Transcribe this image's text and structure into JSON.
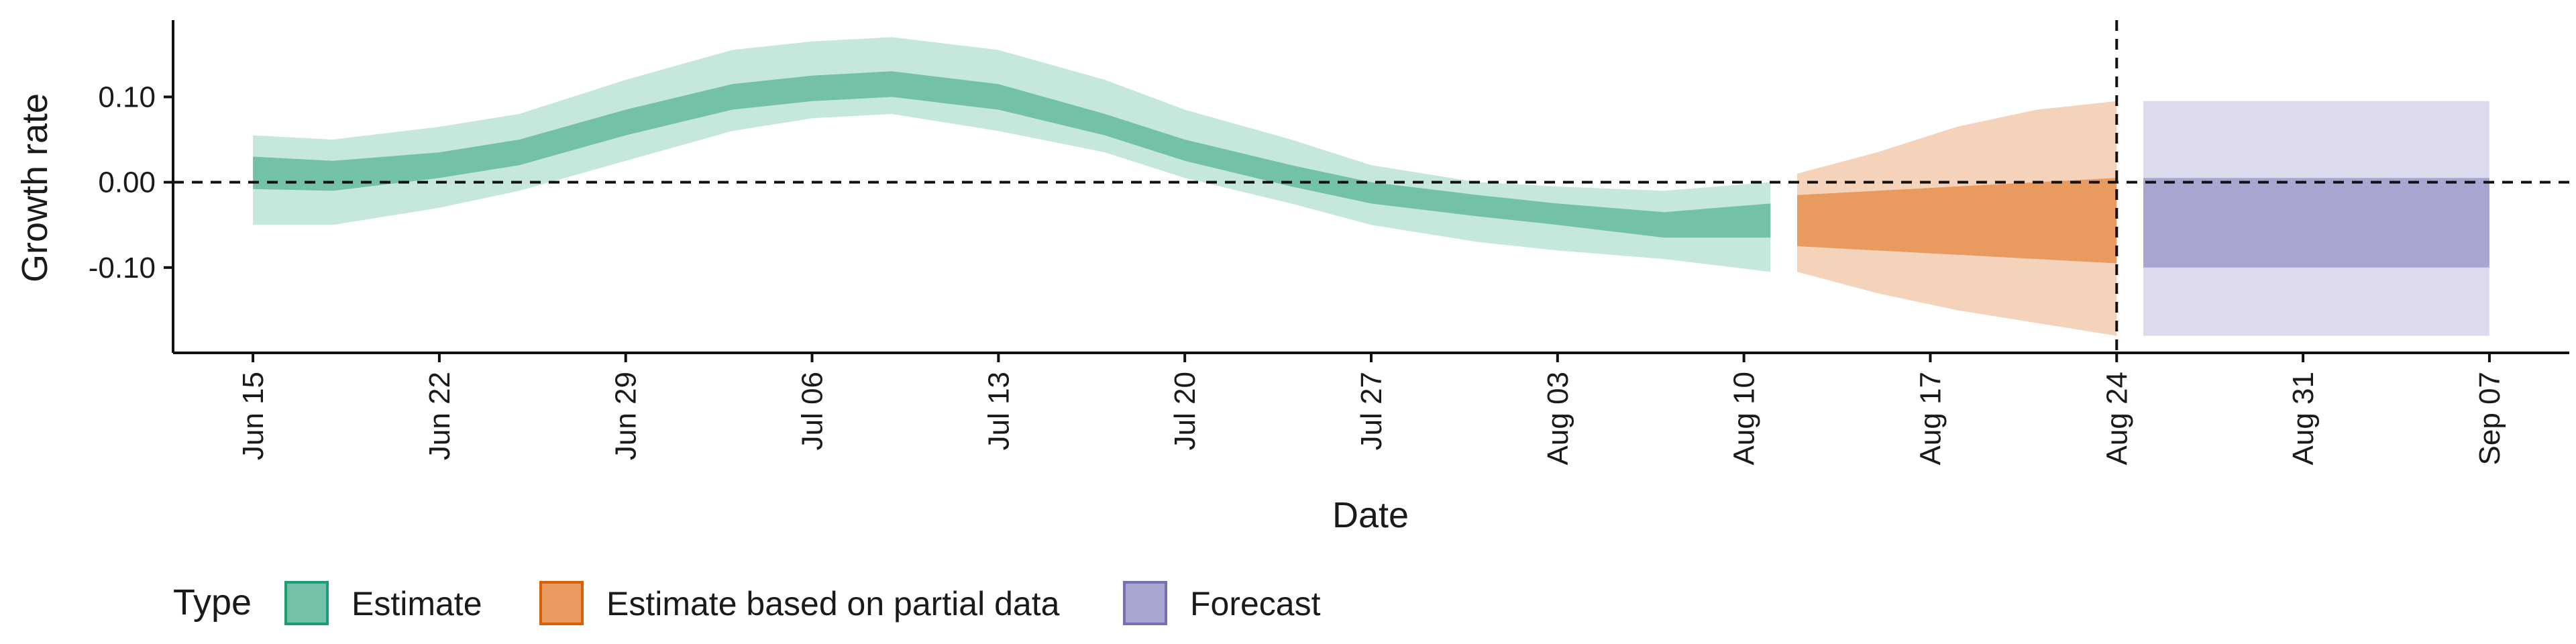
{
  "chart_data": {
    "type": "area",
    "xlabel": "Date",
    "ylabel": "Growth rate",
    "x_start": "2020-06-12",
    "x_end": "2020-09-10",
    "ylim": [
      -0.2,
      0.19
    ],
    "y_ticks": [
      0.1,
      0.0,
      -0.1
    ],
    "y_tick_labels": [
      "0.10",
      "0.00",
      "-0.10"
    ],
    "x_ticks": [
      "2020-06-15",
      "2020-06-22",
      "2020-06-29",
      "2020-07-06",
      "2020-07-13",
      "2020-07-20",
      "2020-07-27",
      "2020-08-03",
      "2020-08-10",
      "2020-08-17",
      "2020-08-24",
      "2020-08-31",
      "2020-09-07"
    ],
    "x_tick_labels": [
      "Jun 15",
      "Jun 22",
      "Jun 29",
      "Jul 06",
      "Jul 13",
      "Jul 20",
      "Jul 27",
      "Aug 03",
      "Aug 10",
      "Aug 17",
      "Aug 24",
      "Aug 31",
      "Sep 07"
    ],
    "reference_lines": {
      "horizontal_y": 0.0,
      "vertical_x": "2020-08-24"
    },
    "legend": {
      "title": "Type",
      "position": "bottom",
      "items": [
        {
          "label": "Estimate",
          "fill": "#72c1a8",
          "border": "#1b9e77"
        },
        {
          "label": "Estimate based on partial data",
          "fill": "#e89a5f",
          "border": "#d95f02"
        },
        {
          "label": "Forecast",
          "fill": "#a9a5d1",
          "border": "#7570b3"
        }
      ]
    },
    "series": [
      {
        "name": "Estimate",
        "outer_fill": "#c5e7dc",
        "inner_fill": "#72c1a8",
        "points": [
          {
            "x": "2020-06-15",
            "lo90": -0.05,
            "lo50": -0.008,
            "hi50": 0.03,
            "hi90": 0.055
          },
          {
            "x": "2020-06-18",
            "lo90": -0.05,
            "lo50": -0.01,
            "hi50": 0.025,
            "hi90": 0.05
          },
          {
            "x": "2020-06-22",
            "lo90": -0.03,
            "lo50": 0.005,
            "hi50": 0.035,
            "hi90": 0.065
          },
          {
            "x": "2020-06-25",
            "lo90": -0.01,
            "lo50": 0.02,
            "hi50": 0.05,
            "hi90": 0.08
          },
          {
            "x": "2020-06-29",
            "lo90": 0.025,
            "lo50": 0.055,
            "hi50": 0.085,
            "hi90": 0.12
          },
          {
            "x": "2020-07-03",
            "lo90": 0.06,
            "lo50": 0.085,
            "hi50": 0.115,
            "hi90": 0.155
          },
          {
            "x": "2020-07-06",
            "lo90": 0.075,
            "lo50": 0.095,
            "hi50": 0.125,
            "hi90": 0.165
          },
          {
            "x": "2020-07-09",
            "lo90": 0.08,
            "lo50": 0.1,
            "hi50": 0.13,
            "hi90": 0.17
          },
          {
            "x": "2020-07-13",
            "lo90": 0.06,
            "lo50": 0.085,
            "hi50": 0.115,
            "hi90": 0.155
          },
          {
            "x": "2020-07-17",
            "lo90": 0.035,
            "lo50": 0.055,
            "hi50": 0.08,
            "hi90": 0.12
          },
          {
            "x": "2020-07-20",
            "lo90": 0.005,
            "lo50": 0.025,
            "hi50": 0.05,
            "hi90": 0.085
          },
          {
            "x": "2020-07-24",
            "lo90": -0.025,
            "lo50": -0.005,
            "hi50": 0.02,
            "hi90": 0.05
          },
          {
            "x": "2020-07-27",
            "lo90": -0.05,
            "lo50": -0.025,
            "hi50": 0.0,
            "hi90": 0.02
          },
          {
            "x": "2020-07-31",
            "lo90": -0.07,
            "lo50": -0.04,
            "hi50": -0.015,
            "hi90": 0.0
          },
          {
            "x": "2020-08-03",
            "lo90": -0.08,
            "lo50": -0.05,
            "hi50": -0.025,
            "hi90": -0.005
          },
          {
            "x": "2020-08-07",
            "lo90": -0.09,
            "lo50": -0.065,
            "hi50": -0.035,
            "hi90": -0.01
          },
          {
            "x": "2020-08-11",
            "lo90": -0.105,
            "lo50": -0.065,
            "hi50": -0.025,
            "hi90": 0.0
          }
        ]
      },
      {
        "name": "Estimate based on partial data",
        "outer_fill": "#f5d3bb",
        "inner_fill": "#e89a5f",
        "points": [
          {
            "x": "2020-08-12",
            "lo90": -0.105,
            "lo50": -0.075,
            "hi50": -0.015,
            "hi90": 0.01
          },
          {
            "x": "2020-08-15",
            "lo90": -0.13,
            "lo50": -0.08,
            "hi50": -0.01,
            "hi90": 0.035
          },
          {
            "x": "2020-08-18",
            "lo90": -0.15,
            "lo50": -0.085,
            "hi50": -0.005,
            "hi90": 0.065
          },
          {
            "x": "2020-08-21",
            "lo90": -0.165,
            "lo50": -0.09,
            "hi50": 0.0,
            "hi90": 0.085
          },
          {
            "x": "2020-08-24",
            "lo90": -0.18,
            "lo50": -0.095,
            "hi50": 0.005,
            "hi90": 0.095
          }
        ]
      },
      {
        "name": "Forecast",
        "outer_fill": "#dcdaed",
        "inner_fill": "#a9a5d1",
        "points": [
          {
            "x": "2020-08-25",
            "lo90": -0.18,
            "lo50": -0.1,
            "hi50": 0.005,
            "hi90": 0.095
          },
          {
            "x": "2020-09-07",
            "lo90": -0.18,
            "lo50": -0.1,
            "hi50": 0.005,
            "hi90": 0.095
          }
        ]
      }
    ]
  }
}
